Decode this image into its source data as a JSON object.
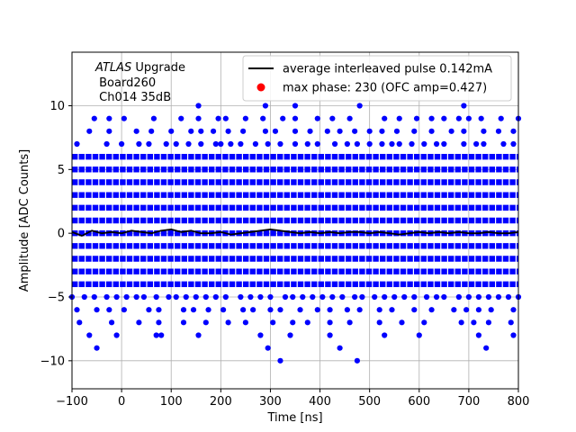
{
  "chart_data": {
    "type": "scatter",
    "xlabel": "Time [ns]",
    "ylabel": "Amplitude [ADC Counts]",
    "xlim": [
      -100,
      800
    ],
    "ylim": [
      -12.2,
      14.2
    ],
    "x_ticks": [
      -100,
      0,
      100,
      200,
      300,
      400,
      500,
      600,
      700,
      800
    ],
    "y_ticks": [
      -10,
      -5,
      0,
      5,
      10
    ],
    "grid": true,
    "legend_position": "top-right",
    "annotation": {
      "italic": "ATLAS",
      "rest": " Upgrade",
      "line2": " Board260",
      "line3": " Ch014 35dB"
    },
    "colors": {
      "samples": "#0000ff",
      "pulse": "#000000",
      "max_phase": "#ff0000",
      "grid": "#b0b0b0"
    },
    "series": [
      {
        "name": "average interleaved pulse 0.142mA",
        "style": "line",
        "points": [
          [
            -100,
            0.1
          ],
          [
            -80,
            -0.2
          ],
          [
            -60,
            0.2
          ],
          [
            -40,
            0.0
          ],
          [
            -20,
            0.1
          ],
          [
            0,
            0.0
          ],
          [
            20,
            0.2
          ],
          [
            40,
            0.1
          ],
          [
            60,
            0.0
          ],
          [
            80,
            0.2
          ],
          [
            100,
            0.3
          ],
          [
            120,
            0.1
          ],
          [
            140,
            0.2
          ],
          [
            160,
            0.0
          ],
          [
            180,
            0.0
          ],
          [
            200,
            0.1
          ],
          [
            220,
            -0.1
          ],
          [
            240,
            0.0
          ],
          [
            260,
            0.1
          ],
          [
            280,
            0.2
          ],
          [
            300,
            0.3
          ],
          [
            320,
            0.2
          ],
          [
            340,
            0.1
          ],
          [
            360,
            0.0
          ],
          [
            380,
            0.1
          ],
          [
            400,
            0.0
          ],
          [
            420,
            0.1
          ],
          [
            440,
            0.0
          ],
          [
            460,
            0.1
          ],
          [
            480,
            0.1
          ],
          [
            500,
            0.0
          ],
          [
            520,
            0.1
          ],
          [
            540,
            0.0
          ],
          [
            560,
            -0.1
          ],
          [
            580,
            0.0
          ],
          [
            600,
            0.1
          ],
          [
            620,
            0.0
          ],
          [
            640,
            0.1
          ],
          [
            660,
            0.0
          ],
          [
            680,
            0.1
          ],
          [
            700,
            0.0
          ],
          [
            720,
            0.0
          ],
          [
            740,
            0.1
          ],
          [
            760,
            0.0
          ],
          [
            780,
            0.0
          ],
          [
            800,
            0.1
          ]
        ]
      },
      {
        "name": "max phase: 230 (OFC amp=0.427)",
        "style": "marker",
        "points": []
      },
      {
        "name": "",
        "style": "dense_samples",
        "dense_levels": [
          -4,
          -3,
          -2,
          -1,
          0,
          1,
          2,
          3,
          4,
          5,
          6
        ],
        "sparse_points": [
          [
            -100,
            -5
          ],
          [
            -75,
            -5
          ],
          [
            -55,
            -5
          ],
          [
            -30,
            -5
          ],
          [
            -10,
            -5
          ],
          [
            10,
            -5
          ],
          [
            30,
            -5
          ],
          [
            45,
            -5
          ],
          [
            70,
            -5
          ],
          [
            95,
            -5
          ],
          [
            110,
            -5
          ],
          [
            130,
            -5
          ],
          [
            150,
            -5
          ],
          [
            170,
            -5
          ],
          [
            190,
            -5
          ],
          [
            210,
            -5
          ],
          [
            240,
            -5
          ],
          [
            260,
            -5
          ],
          [
            280,
            -5
          ],
          [
            300,
            -5
          ],
          [
            330,
            -5
          ],
          [
            345,
            -5
          ],
          [
            365,
            -5
          ],
          [
            385,
            -5
          ],
          [
            405,
            -5
          ],
          [
            425,
            -5
          ],
          [
            445,
            -5
          ],
          [
            470,
            -5
          ],
          [
            485,
            -5
          ],
          [
            510,
            -5
          ],
          [
            530,
            -5
          ],
          [
            550,
            -5
          ],
          [
            570,
            -5
          ],
          [
            590,
            -5
          ],
          [
            615,
            -5
          ],
          [
            635,
            -5
          ],
          [
            650,
            -5
          ],
          [
            680,
            -5
          ],
          [
            700,
            -5
          ],
          [
            720,
            -5
          ],
          [
            740,
            -5
          ],
          [
            760,
            -5
          ],
          [
            780,
            -5
          ],
          [
            800,
            -5
          ],
          [
            -90,
            -6
          ],
          [
            -50,
            -6
          ],
          [
            -25,
            -6
          ],
          [
            5,
            -6
          ],
          [
            55,
            -6
          ],
          [
            75,
            -6
          ],
          [
            125,
            -6
          ],
          [
            145,
            -6
          ],
          [
            175,
            -6
          ],
          [
            205,
            -6
          ],
          [
            245,
            -6
          ],
          [
            265,
            -6
          ],
          [
            300,
            -6
          ],
          [
            320,
            -6
          ],
          [
            360,
            -6
          ],
          [
            395,
            -6
          ],
          [
            420,
            -6
          ],
          [
            455,
            -6
          ],
          [
            480,
            -6
          ],
          [
            520,
            -6
          ],
          [
            545,
            -6
          ],
          [
            590,
            -6
          ],
          [
            625,
            -6
          ],
          [
            670,
            -6
          ],
          [
            695,
            -6
          ],
          [
            720,
            -6
          ],
          [
            745,
            -6
          ],
          [
            790,
            -6
          ],
          [
            -85,
            -7
          ],
          [
            -20,
            -7
          ],
          [
            35,
            -7
          ],
          [
            75,
            -7
          ],
          [
            125,
            -7
          ],
          [
            170,
            -7
          ],
          [
            215,
            -7
          ],
          [
            250,
            -7
          ],
          [
            305,
            -7
          ],
          [
            345,
            -7
          ],
          [
            375,
            -7
          ],
          [
            420,
            -7
          ],
          [
            460,
            -7
          ],
          [
            520,
            -7
          ],
          [
            565,
            -7
          ],
          [
            610,
            -7
          ],
          [
            685,
            -7
          ],
          [
            710,
            -7
          ],
          [
            740,
            -7
          ],
          [
            785,
            -7
          ],
          [
            -65,
            -8
          ],
          [
            -10,
            -8
          ],
          [
            70,
            -8
          ],
          [
            80,
            -8
          ],
          [
            155,
            -8
          ],
          [
            280,
            -8
          ],
          [
            340,
            -8
          ],
          [
            420,
            -8
          ],
          [
            530,
            -8
          ],
          [
            600,
            -8
          ],
          [
            720,
            -8
          ],
          [
            790,
            -8
          ],
          [
            -50,
            -9
          ],
          [
            295,
            -9
          ],
          [
            440,
            -9
          ],
          [
            735,
            -9
          ],
          [
            320,
            -10
          ],
          [
            475,
            -10
          ],
          [
            -90,
            7
          ],
          [
            -30,
            7
          ],
          [
            0,
            7
          ],
          [
            35,
            7
          ],
          [
            55,
            7
          ],
          [
            90,
            7
          ],
          [
            110,
            7
          ],
          [
            135,
            7
          ],
          [
            160,
            7
          ],
          [
            190,
            7
          ],
          [
            200,
            7
          ],
          [
            220,
            7
          ],
          [
            240,
            7
          ],
          [
            270,
            7
          ],
          [
            295,
            7
          ],
          [
            320,
            7
          ],
          [
            350,
            7
          ],
          [
            375,
            7
          ],
          [
            395,
            7
          ],
          [
            430,
            7
          ],
          [
            455,
            7
          ],
          [
            475,
            7
          ],
          [
            500,
            7
          ],
          [
            525,
            7
          ],
          [
            545,
            7
          ],
          [
            560,
            7
          ],
          [
            585,
            7
          ],
          [
            610,
            7
          ],
          [
            635,
            7
          ],
          [
            650,
            7
          ],
          [
            690,
            7
          ],
          [
            715,
            7
          ],
          [
            730,
            7
          ],
          [
            770,
            7
          ],
          [
            790,
            7
          ],
          [
            -65,
            8
          ],
          [
            -25,
            8
          ],
          [
            30,
            8
          ],
          [
            60,
            8
          ],
          [
            100,
            8
          ],
          [
            140,
            8
          ],
          [
            160,
            8
          ],
          [
            185,
            8
          ],
          [
            215,
            8
          ],
          [
            245,
            8
          ],
          [
            290,
            8
          ],
          [
            310,
            8
          ],
          [
            350,
            8
          ],
          [
            380,
            8
          ],
          [
            415,
            8
          ],
          [
            440,
            8
          ],
          [
            470,
            8
          ],
          [
            500,
            8
          ],
          [
            525,
            8
          ],
          [
            555,
            8
          ],
          [
            590,
            8
          ],
          [
            625,
            8
          ],
          [
            665,
            8
          ],
          [
            690,
            8
          ],
          [
            730,
            8
          ],
          [
            760,
            8
          ],
          [
            790,
            8
          ],
          [
            -55,
            9
          ],
          [
            -25,
            9
          ],
          [
            5,
            9
          ],
          [
            65,
            9
          ],
          [
            120,
            9
          ],
          [
            155,
            9
          ],
          [
            195,
            9
          ],
          [
            210,
            9
          ],
          [
            250,
            9
          ],
          [
            285,
            9
          ],
          [
            325,
            9
          ],
          [
            350,
            9
          ],
          [
            395,
            9
          ],
          [
            425,
            9
          ],
          [
            460,
            9
          ],
          [
            530,
            9
          ],
          [
            560,
            9
          ],
          [
            595,
            9
          ],
          [
            625,
            9
          ],
          [
            650,
            9
          ],
          [
            680,
            9
          ],
          [
            700,
            9
          ],
          [
            725,
            9
          ],
          [
            765,
            9
          ],
          [
            800,
            9
          ],
          [
            155,
            10
          ],
          [
            290,
            10
          ],
          [
            350,
            10
          ],
          [
            480,
            10
          ],
          [
            690,
            10
          ]
        ]
      }
    ]
  }
}
